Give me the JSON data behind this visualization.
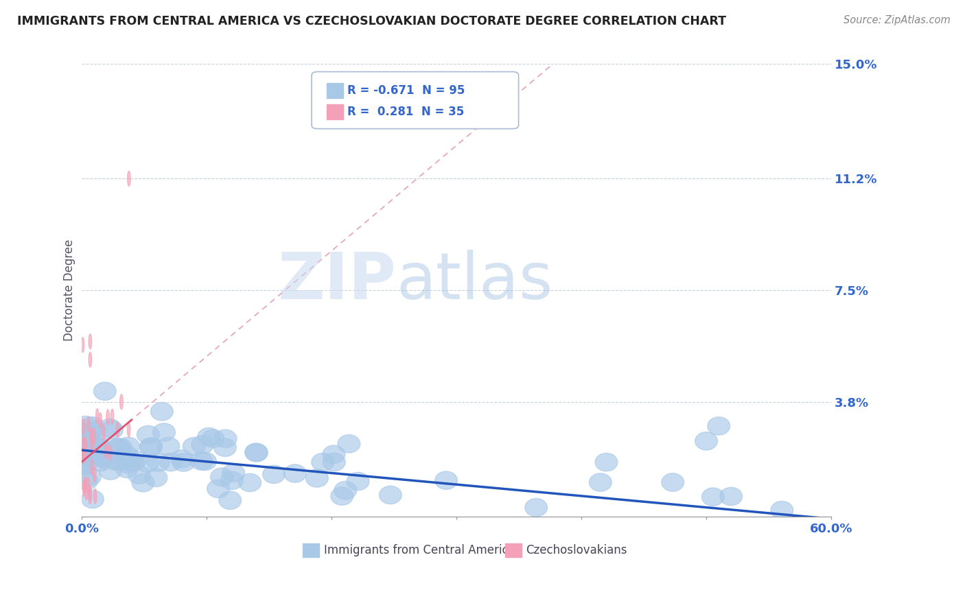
{
  "title": "IMMIGRANTS FROM CENTRAL AMERICA VS CZECHOSLOVAKIAN DOCTORATE DEGREE CORRELATION CHART",
  "source": "Source: ZipAtlas.com",
  "ylabel": "Doctorate Degree",
  "xlim": [
    0.0,
    0.6
  ],
  "ylim": [
    0.0,
    0.15
  ],
  "ytick_values": [
    0.0,
    0.038,
    0.075,
    0.112,
    0.15
  ],
  "ytick_labels": [
    "",
    "3.8%",
    "7.5%",
    "11.2%",
    "15.0%"
  ],
  "grid_values": [
    0.038,
    0.075,
    0.112,
    0.15
  ],
  "legend1_label": "R = -0.671  N = 95",
  "legend2_label": "R =  0.281  N = 35",
  "series1_color": "#a8c8e8",
  "series2_color": "#f4a0b8",
  "trend1_color": "#2255bb",
  "trend2_color": "#e05070",
  "trend2_dashed_color": "#e8a0b0",
  "watermark_zip": "ZIP",
  "watermark_atlas": "atlas",
  "background_color": "#ffffff",
  "legend_box_color": "#c8d8ec",
  "legend_text_color": "#3366cc",
  "axis_label_color": "#3366cc",
  "title_color": "#222222",
  "source_color": "#888888"
}
